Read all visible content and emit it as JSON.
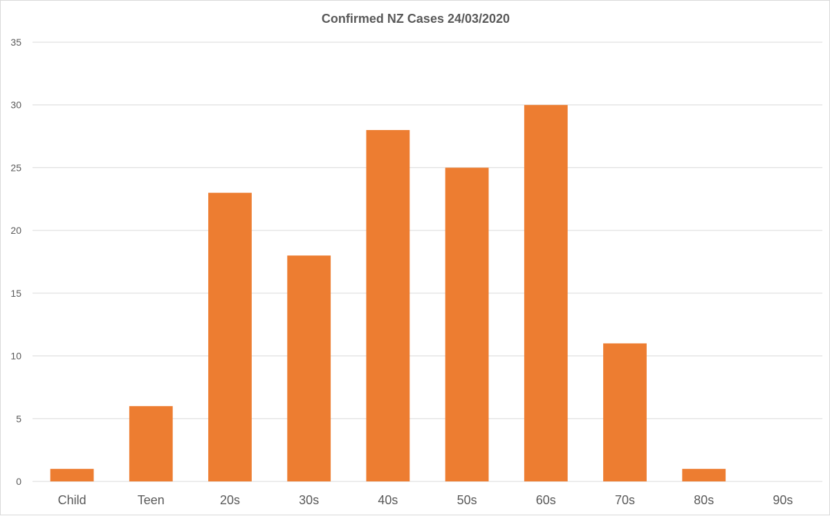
{
  "chart_data": {
    "type": "bar",
    "title": "Confirmed NZ Cases 24/03/2020",
    "categories": [
      "Child",
      "Teen",
      "20s",
      "30s",
      "40s",
      "50s",
      "60s",
      "70s",
      "80s",
      "90s"
    ],
    "values": [
      1,
      6,
      23,
      18,
      28,
      25,
      30,
      11,
      1,
      0
    ],
    "ylim": [
      0,
      35
    ],
    "yticks": [
      0,
      5,
      10,
      15,
      20,
      25,
      30,
      35
    ],
    "xlabel": "",
    "ylabel": "",
    "grid": true,
    "legend": "none",
    "bar_color": "#ED7D31",
    "grid_color": "#d9d9d9"
  }
}
